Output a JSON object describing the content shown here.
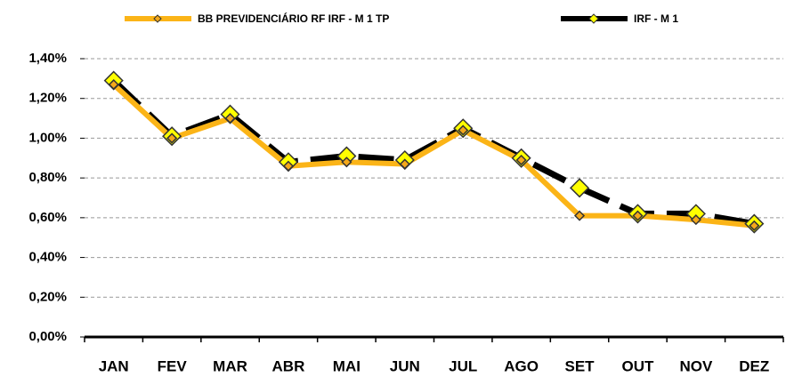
{
  "chart_data": {
    "type": "line",
    "categories": [
      "JAN",
      "FEV",
      "MAR",
      "ABR",
      "MAI",
      "JUN",
      "JUL",
      "AGO",
      "SET",
      "OUT",
      "NOV",
      "DEZ"
    ],
    "series": [
      {
        "name": "BB PREVIDENCIÁRIO RF IRF - M 1 TP",
        "color": "#fbb417",
        "marker_fill": "#f4a81a",
        "marker": "diamond",
        "values": [
          1.27,
          1.0,
          1.1,
          0.86,
          0.88,
          0.87,
          1.04,
          0.89,
          0.61,
          0.61,
          0.59,
          0.56
        ]
      },
      {
        "name": "IRF - M 1",
        "color": "#000000",
        "marker_fill": "#ffff00",
        "marker": "diamond",
        "dashed": true,
        "values": [
          1.29,
          1.01,
          1.12,
          0.88,
          0.91,
          0.89,
          1.05,
          0.9,
          0.75,
          0.62,
          0.62,
          0.57
        ]
      }
    ],
    "ylim": [
      0,
      1.4
    ],
    "yticks": [
      {
        "value": 0,
        "label": "0,00%"
      },
      {
        "value": 0.2,
        "label": "0,20%"
      },
      {
        "value": 0.4,
        "label": "0,40%"
      },
      {
        "value": 0.6,
        "label": "0,60%"
      },
      {
        "value": 0.8,
        "label": "0,80%"
      },
      {
        "value": 1.0,
        "label": "1,00%"
      },
      {
        "value": 1.2,
        "label": "1,20%"
      },
      {
        "value": 1.4,
        "label": "1,40%"
      }
    ],
    "grid": true,
    "legend": "top"
  }
}
